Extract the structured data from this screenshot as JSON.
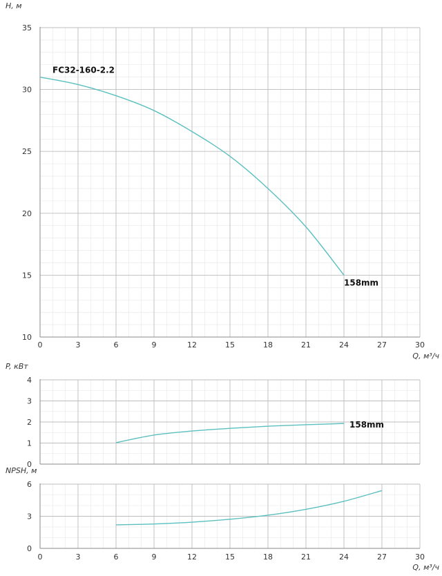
{
  "chart_data": [
    {
      "type": "line",
      "id": "head",
      "ylabel": "H, м",
      "xlabel": "Q, м³/ч",
      "xlim": [
        0,
        30
      ],
      "ylim": [
        10,
        35
      ],
      "xticks": [
        0,
        3,
        6,
        9,
        12,
        15,
        18,
        21,
        24,
        27,
        30
      ],
      "yticks": [
        10,
        15,
        20,
        25,
        30,
        35
      ],
      "grid": true,
      "color": "#5bbfbf",
      "series": [
        {
          "x": [
            0,
            3,
            6,
            9,
            12,
            15,
            18,
            21,
            24
          ],
          "y": [
            31.0,
            30.4,
            29.5,
            28.3,
            26.6,
            24.6,
            22.0,
            18.9,
            15.0
          ]
        }
      ],
      "annotations": [
        {
          "text": "FC32-160-2.2",
          "x": 0,
          "y": 31.0,
          "anchor": "start-above"
        },
        {
          "text": "158mm",
          "x": 24,
          "y": 15.0,
          "anchor": "end-below"
        }
      ]
    },
    {
      "type": "line",
      "id": "power",
      "ylabel": "P, кВт",
      "xlabel": "",
      "xlim": [
        0,
        30
      ],
      "ylim": [
        0,
        4
      ],
      "xticks": [
        0,
        3,
        6,
        9,
        12,
        15,
        18,
        21,
        24,
        27,
        30
      ],
      "yticks": [
        0,
        1,
        2,
        3,
        4
      ],
      "grid": true,
      "color": "#5bbfbf",
      "series": [
        {
          "x": [
            6,
            9,
            12,
            15,
            18,
            21,
            24
          ],
          "y": [
            1.02,
            1.38,
            1.57,
            1.7,
            1.8,
            1.87,
            1.93
          ]
        }
      ],
      "annotations": [
        {
          "text": "158mm",
          "x": 24,
          "y": 1.93,
          "anchor": "end-right"
        }
      ]
    },
    {
      "type": "line",
      "id": "npsh",
      "ylabel": "NPSH, м",
      "xlabel": "Q, м³/ч",
      "xlim": [
        0,
        30
      ],
      "ylim": [
        0,
        6
      ],
      "xticks": [
        0,
        3,
        6,
        9,
        12,
        15,
        18,
        21,
        24,
        27,
        30
      ],
      "yticks": [
        0,
        3,
        6
      ],
      "grid": true,
      "color": "#5bbfbf",
      "series": [
        {
          "x": [
            6,
            9,
            12,
            15,
            18,
            21,
            24,
            27
          ],
          "y": [
            2.2,
            2.28,
            2.45,
            2.72,
            3.1,
            3.65,
            4.4,
            5.4
          ]
        }
      ],
      "annotations": []
    }
  ]
}
